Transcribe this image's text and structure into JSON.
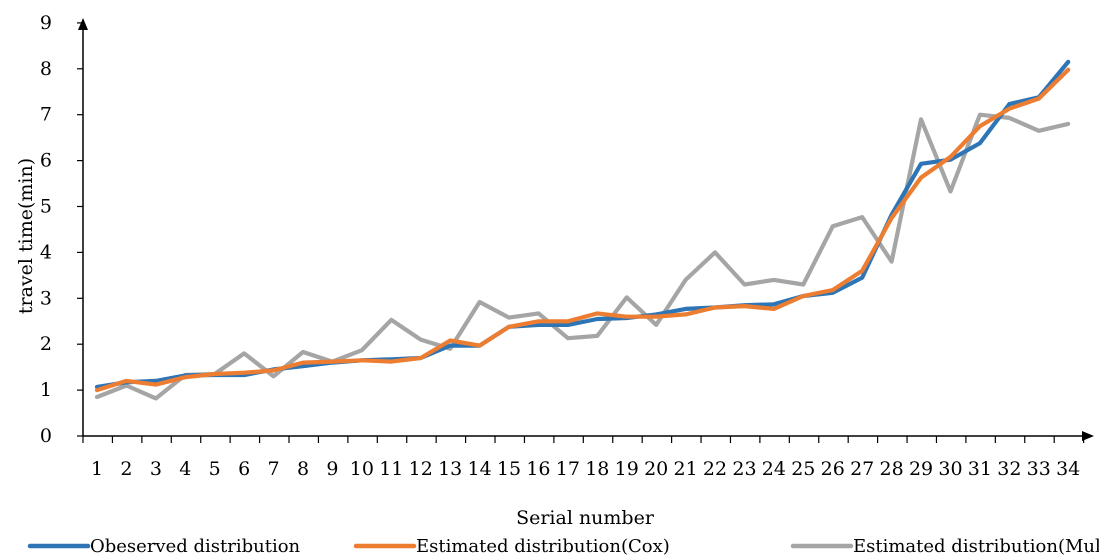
{
  "chart_data": {
    "type": "line",
    "title": "",
    "xlabel": "Serial number",
    "ylabel": "travel time(min)",
    "ylim": [
      0,
      9
    ],
    "yticks": [
      0,
      1,
      2,
      3,
      4,
      5,
      6,
      7,
      8,
      9
    ],
    "grid": false,
    "legend_position": "bottom",
    "categories": [
      "1",
      "2",
      "3",
      "4",
      "5",
      "6",
      "7",
      "8",
      "9",
      "10",
      "11",
      "12",
      "13",
      "14",
      "15",
      "16",
      "17",
      "18",
      "19",
      "20",
      "21",
      "22",
      "23",
      "24",
      "25",
      "26",
      "27",
      "28",
      "29",
      "30",
      "31",
      "32",
      "33",
      "34"
    ],
    "series": [
      {
        "name": "Obeserved distribution",
        "color": "#2E75B6",
        "values": [
          1.07,
          1.17,
          1.2,
          1.32,
          1.33,
          1.33,
          1.45,
          1.52,
          1.6,
          1.65,
          1.67,
          1.7,
          1.97,
          1.97,
          2.38,
          2.42,
          2.42,
          2.55,
          2.57,
          2.65,
          2.77,
          2.8,
          2.85,
          2.87,
          3.05,
          3.12,
          3.45,
          4.82,
          5.93,
          6.02,
          6.38,
          7.23,
          7.38,
          8.15
        ]
      },
      {
        "name": "Estimated distribution(Cox)",
        "color": "#ED7D31",
        "values": [
          1.0,
          1.2,
          1.12,
          1.28,
          1.35,
          1.38,
          1.43,
          1.6,
          1.62,
          1.65,
          1.62,
          1.7,
          2.08,
          1.97,
          2.38,
          2.5,
          2.5,
          2.67,
          2.6,
          2.6,
          2.65,
          2.8,
          2.83,
          2.77,
          3.05,
          3.18,
          3.6,
          4.75,
          5.63,
          6.08,
          6.75,
          7.13,
          7.35,
          7.98
        ]
      },
      {
        "name": "Estimated distribution(Mul)",
        "color": "#A5A5A5",
        "values": [
          0.85,
          1.1,
          0.82,
          1.33,
          1.35,
          1.8,
          1.3,
          1.83,
          1.62,
          1.87,
          2.53,
          2.1,
          1.9,
          2.92,
          2.58,
          2.67,
          2.13,
          2.18,
          3.02,
          2.42,
          3.4,
          4.0,
          3.3,
          3.4,
          3.3,
          4.57,
          4.77,
          3.8,
          6.9,
          5.33,
          7.0,
          6.93,
          6.65,
          6.8
        ]
      }
    ]
  }
}
